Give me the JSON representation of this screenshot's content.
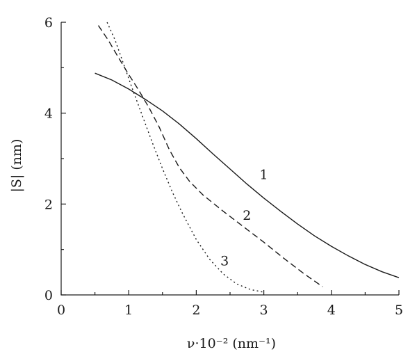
{
  "chart_data": {
    "type": "line",
    "title": "",
    "xlabel": "ν·10⁻² (nm⁻¹)",
    "ylabel": "|S| (nm)",
    "xlim": [
      0,
      5
    ],
    "ylim": [
      0,
      6
    ],
    "xticks": [
      "0",
      "1",
      "2",
      "3",
      "4",
      "5"
    ],
    "yticks": [
      "0",
      "2",
      "4",
      "6"
    ],
    "grid": false,
    "series": [
      {
        "name": "1",
        "style": "solid",
        "x": [
          0.5,
          0.75,
          1.0,
          1.25,
          1.5,
          1.75,
          2.0,
          2.25,
          2.5,
          2.75,
          3.0,
          3.25,
          3.5,
          3.75,
          4.0,
          4.25,
          4.5,
          4.75,
          5.0
        ],
        "y": [
          4.88,
          4.73,
          4.53,
          4.3,
          4.05,
          3.76,
          3.44,
          3.1,
          2.77,
          2.44,
          2.13,
          1.84,
          1.56,
          1.3,
          1.07,
          0.86,
          0.67,
          0.51,
          0.38
        ]
      },
      {
        "name": "2",
        "style": "dashed",
        "x": [
          0.55,
          0.7,
          0.85,
          1.0,
          1.15,
          1.3,
          1.45,
          1.6,
          1.75,
          1.9,
          2.1,
          2.4,
          2.7,
          3.0,
          3.3,
          3.6,
          3.87
        ],
        "y": [
          5.93,
          5.6,
          5.22,
          4.85,
          4.5,
          4.12,
          3.7,
          3.2,
          2.8,
          2.5,
          2.2,
          1.84,
          1.5,
          1.16,
          0.8,
          0.46,
          0.18
        ]
      },
      {
        "name": "3",
        "style": "dotted",
        "x": [
          0.68,
          0.8,
          0.92,
          1.05,
          1.2,
          1.35,
          1.5,
          1.65,
          1.8,
          2.0,
          2.2,
          2.4,
          2.6,
          2.8,
          3.0
        ],
        "y": [
          6.0,
          5.6,
          5.1,
          4.55,
          3.95,
          3.35,
          2.78,
          2.25,
          1.78,
          1.22,
          0.78,
          0.46,
          0.24,
          0.12,
          0.06
        ]
      }
    ],
    "annotations": [
      {
        "text": "1",
        "x": 3.0,
        "y": 2.55
      },
      {
        "text": "2",
        "x": 2.75,
        "y": 1.65
      },
      {
        "text": "3",
        "x": 2.42,
        "y": 0.65
      }
    ]
  }
}
